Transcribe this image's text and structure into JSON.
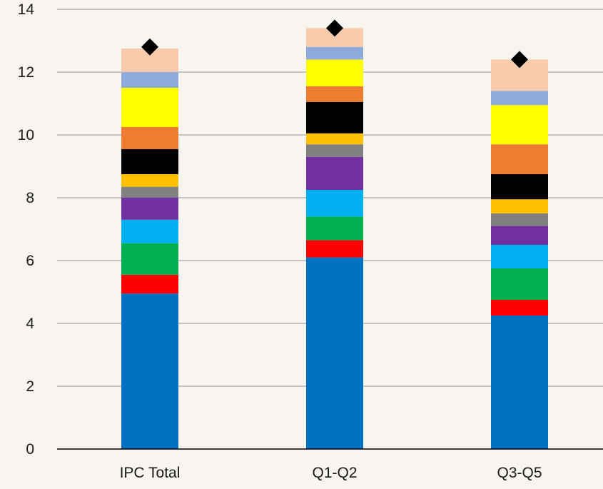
{
  "chart_data": {
    "type": "bar",
    "stacked": true,
    "title": "",
    "xlabel": "",
    "ylabel": "",
    "ylim": [
      0,
      14
    ],
    "yticks": [
      0,
      2,
      4,
      6,
      8,
      10,
      12,
      14
    ],
    "grid": true,
    "legend": "none",
    "categories": [
      "IPC Total",
      "Q1-Q2",
      "Q3-Q5"
    ],
    "series": [
      {
        "color": "#0070c0",
        "values": [
          4.95,
          6.1,
          4.25
        ]
      },
      {
        "color": "#ff0000",
        "values": [
          0.6,
          0.55,
          0.5
        ]
      },
      {
        "color": "#00b050",
        "values": [
          1.0,
          0.75,
          1.0
        ]
      },
      {
        "color": "#00b0f0",
        "values": [
          0.75,
          0.85,
          0.75
        ]
      },
      {
        "color": "#7030a0",
        "values": [
          0.7,
          1.05,
          0.6
        ]
      },
      {
        "color": "#808080",
        "values": [
          0.35,
          0.4,
          0.4
        ]
      },
      {
        "color": "#ffc000",
        "values": [
          0.4,
          0.35,
          0.45
        ]
      },
      {
        "color": "#000000",
        "values": [
          0.8,
          1.0,
          0.8
        ]
      },
      {
        "color": "#ed7d31",
        "values": [
          0.7,
          0.5,
          0.95
        ]
      },
      {
        "color": "#ffff00",
        "values": [
          1.25,
          0.85,
          1.25
        ]
      },
      {
        "color": "#8eaadb",
        "values": [
          0.5,
          0.4,
          0.45
        ]
      },
      {
        "color": "#f8cbad",
        "values": [
          0.75,
          0.6,
          1.0
        ]
      }
    ],
    "markers": {
      "shape": "diamond",
      "color": "#000000",
      "values": [
        12.8,
        13.4,
        12.4
      ]
    }
  }
}
